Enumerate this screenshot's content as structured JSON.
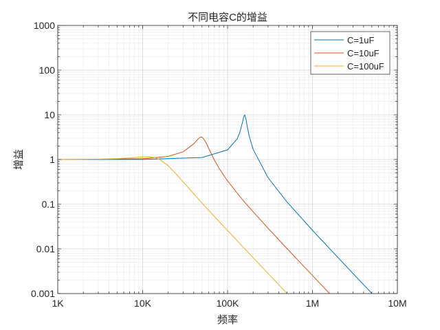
{
  "chart_data": {
    "type": "line",
    "title": "不同电容C的增益",
    "xlabel": "频率",
    "ylabel": "增益",
    "xscale": "log",
    "yscale": "log",
    "xlim": [
      1000,
      10000000
    ],
    "ylim": [
      0.001,
      1000
    ],
    "grid": true,
    "minor_grid": true,
    "legend_position": "top-right",
    "x_ticks": [
      1000,
      10000,
      100000,
      1000000,
      10000000
    ],
    "x_tick_labels": [
      "1K",
      "10K",
      "100K",
      "1M",
      "10M"
    ],
    "y_ticks": [
      0.001,
      0.01,
      0.1,
      1,
      10,
      100,
      1000
    ],
    "y_tick_labels": [
      "0.001",
      "0.01",
      "0.1",
      "1",
      "10",
      "100",
      "1000"
    ],
    "series": [
      {
        "name": "C=1uF",
        "color": "#0072BD",
        "x": [
          1000,
          10000,
          50000,
          100000,
          130000,
          140000,
          150000,
          155000,
          159000,
          165000,
          170000,
          180000,
          200000,
          300000,
          500000,
          1000000,
          2000000,
          5000000,
          10000000
        ],
        "y": [
          1.0,
          1.004,
          1.109,
          1.644,
          2.915,
          4.12,
          6.83,
          9.08,
          10.0,
          7.82,
          5.65,
          3.32,
          1.688,
          0.391,
          0.1127,
          0.026,
          0.00637,
          0.00101,
          0.000253
        ]
      },
      {
        "name": "C=10uF",
        "color": "#D95319",
        "x": [
          1000,
          10000,
          20000,
          30000,
          40000,
          45000,
          48000,
          50300,
          55000,
          60000,
          70000,
          80000,
          100000,
          150000,
          200000,
          300000,
          500000,
          1000000,
          2000000
        ],
        "y": [
          1.0,
          1.039,
          1.174,
          1.489,
          2.244,
          2.884,
          3.175,
          3.162,
          2.521,
          1.77,
          0.97,
          0.6216,
          0.3318,
          0.126,
          0.0675,
          0.02895,
          0.01022,
          0.00254,
          0.000634
        ]
      },
      {
        "name": "C=100uF",
        "color": "#EDB120",
        "x": [
          1000,
          3000,
          5000,
          8000,
          10000,
          12000,
          14000,
          16000,
          20000,
          25000,
          30000,
          40000,
          50000,
          70000,
          100000,
          200000,
          500000,
          1000000
        ],
        "y": [
          1.002,
          1.018,
          1.048,
          1.11,
          1.146,
          1.151,
          1.101,
          0.995,
          0.7228,
          0.4653,
          0.3151,
          0.17,
          0.1063,
          0.053,
          0.02565,
          0.00635,
          0.001014,
          0.000253
        ]
      }
    ]
  }
}
